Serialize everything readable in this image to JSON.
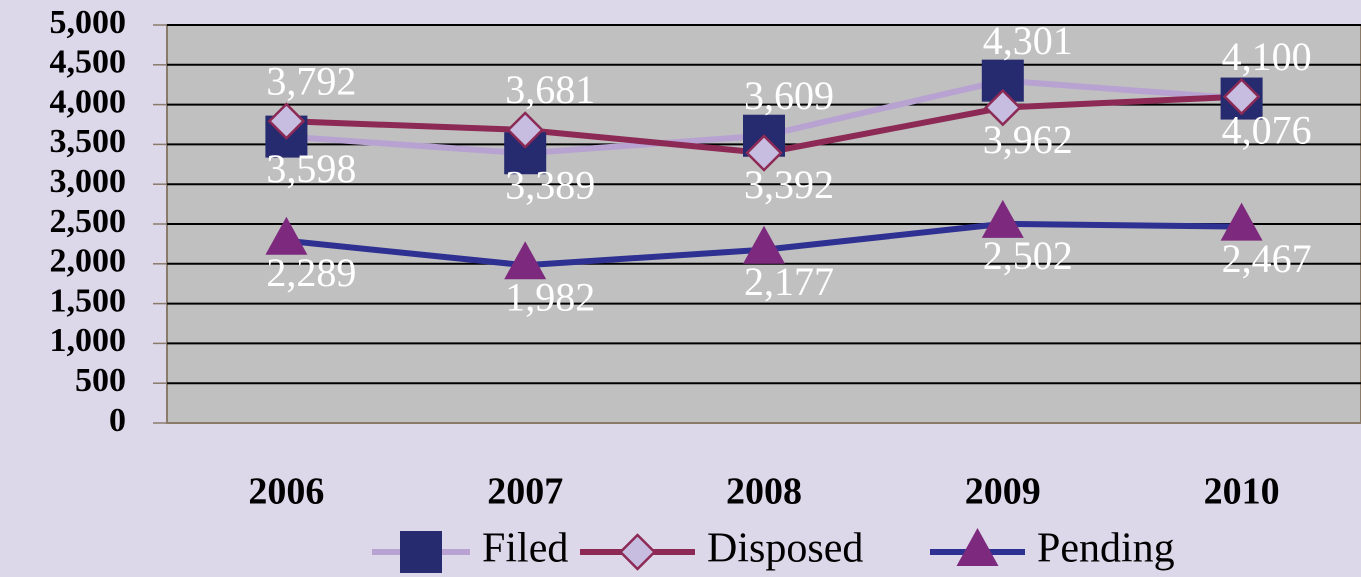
{
  "chart_data": {
    "type": "line",
    "categories": [
      "2006",
      "2007",
      "2008",
      "2009",
      "2010"
    ],
    "series": [
      {
        "name": "Filed",
        "color": "#b8a2d2",
        "marker_color": "#262a6e",
        "values": [
          3598,
          3389,
          3609,
          4301,
          4076
        ],
        "value_labels": [
          "3,598",
          "3,389",
          "3,609",
          "4,301",
          "4,076"
        ]
      },
      {
        "name": "Disposed",
        "color": "#8c2a55",
        "marker_color": "#c6bde0",
        "values": [
          3792,
          3681,
          3392,
          3962,
          4100
        ],
        "value_labels": [
          "3,792",
          "3,681",
          "3,392",
          "3,962",
          "4,100"
        ]
      },
      {
        "name": "Pending",
        "color": "#2e3192",
        "marker_color": "#7d2a7e",
        "values": [
          2289,
          1982,
          2177,
          2502,
          2467
        ],
        "value_labels": [
          "2,289",
          "1,982",
          "2,177",
          "2,502",
          "2,467"
        ]
      }
    ],
    "ylim": [
      0,
      5000
    ],
    "yticks": [
      0,
      500,
      {
        "value": 1000,
        "label": "1,000"
      },
      {
        "value": 1500,
        "label": "1,500"
      },
      {
        "value": 2000,
        "label": "2,000"
      },
      {
        "value": 2500,
        "label": "2,500"
      },
      {
        "value": 3000,
        "label": "3,000"
      },
      {
        "value": 3500,
        "label": "3,500"
      },
      {
        "value": 4000,
        "label": "4,000"
      },
      {
        "value": 4500,
        "label": "4,500"
      },
      {
        "value": 5000,
        "label": "5,000"
      }
    ],
    "grid": true,
    "legend": "bottom"
  }
}
